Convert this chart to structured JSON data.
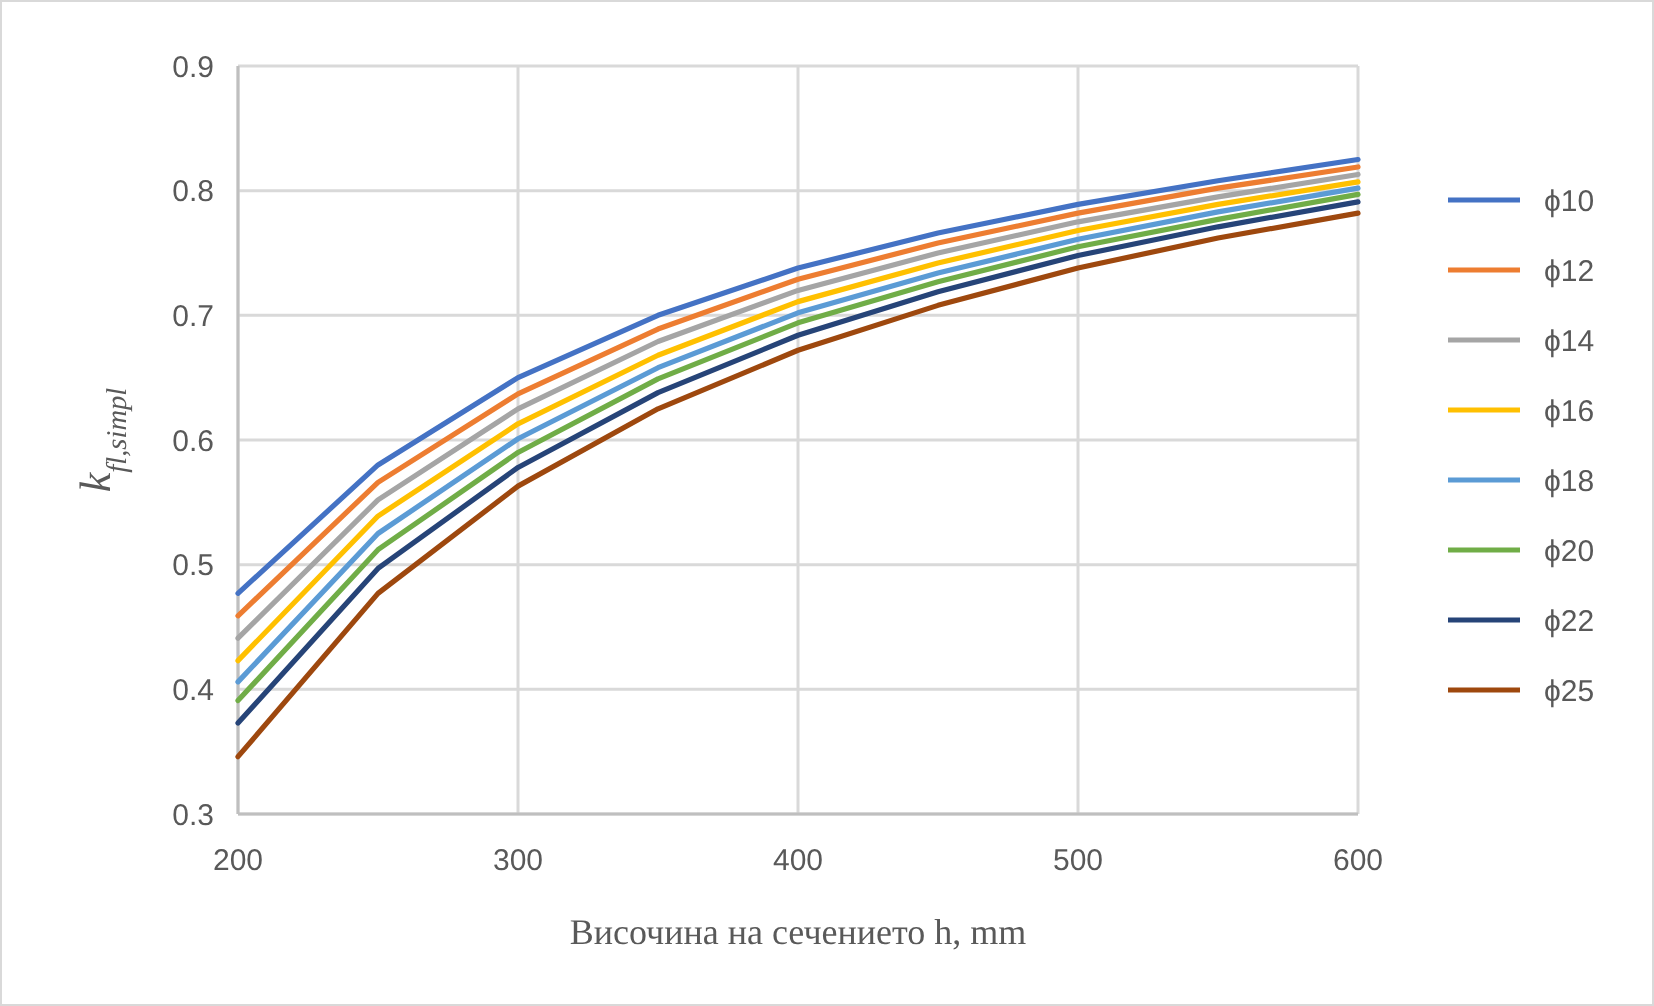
{
  "chart_data": {
    "type": "line",
    "xlabel": "Височина на сечението h, mm",
    "ylabel": "k$_{fl,simpl}$",
    "x": [
      200,
      250,
      300,
      350,
      400,
      450,
      500,
      550,
      600
    ],
    "xlim": [
      200,
      600
    ],
    "xticks": [
      200,
      300,
      400,
      500,
      600
    ],
    "ylim": [
      0.3,
      0.9
    ],
    "yticks": [
      0.3,
      0.4,
      0.5,
      0.6,
      0.7,
      0.8,
      0.9
    ],
    "grid": true,
    "legend": "right",
    "marker": "none",
    "line_style": "solid",
    "series": [
      {
        "name": "ϕ10",
        "color": "#4472c4",
        "values": [
          0.477,
          0.58,
          0.65,
          0.7,
          0.738,
          0.766,
          0.789,
          0.808,
          0.825
        ]
      },
      {
        "name": "ϕ12",
        "color": "#ed7d31",
        "values": [
          0.459,
          0.566,
          0.637,
          0.689,
          0.729,
          0.758,
          0.782,
          0.802,
          0.819
        ]
      },
      {
        "name": "ϕ14",
        "color": "#a5a5a5",
        "values": [
          0.441,
          0.552,
          0.625,
          0.679,
          0.72,
          0.75,
          0.775,
          0.795,
          0.813
        ]
      },
      {
        "name": "ϕ16",
        "color": "#ffc000",
        "values": [
          0.423,
          0.539,
          0.613,
          0.668,
          0.711,
          0.742,
          0.768,
          0.789,
          0.807
        ]
      },
      {
        "name": "ϕ18",
        "color": "#5b9bd5",
        "values": [
          0.406,
          0.525,
          0.601,
          0.658,
          0.702,
          0.734,
          0.761,
          0.783,
          0.802
        ]
      },
      {
        "name": "ϕ20",
        "color": "#70ad47",
        "values": [
          0.391,
          0.512,
          0.59,
          0.649,
          0.694,
          0.727,
          0.755,
          0.777,
          0.797
        ]
      },
      {
        "name": "ϕ22",
        "color": "#264478",
        "values": [
          0.373,
          0.497,
          0.578,
          0.638,
          0.684,
          0.719,
          0.748,
          0.771,
          0.791
        ]
      },
      {
        "name": "ϕ25",
        "color": "#9e480e",
        "values": [
          0.346,
          0.477,
          0.563,
          0.625,
          0.672,
          0.708,
          0.738,
          0.762,
          0.782
        ]
      }
    ]
  }
}
